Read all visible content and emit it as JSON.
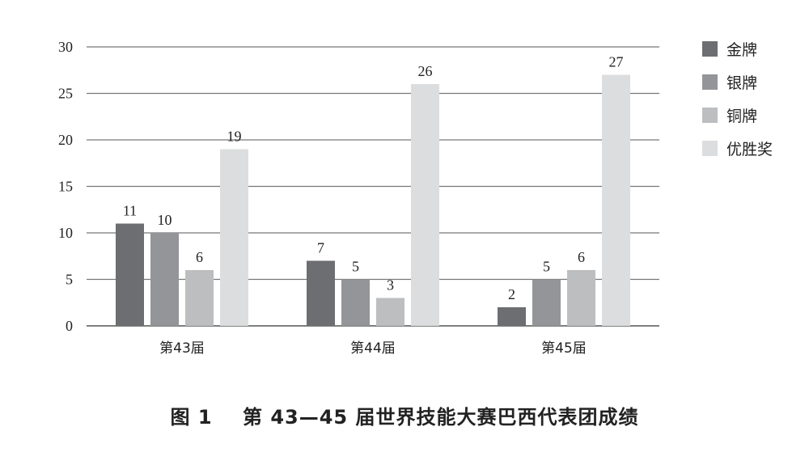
{
  "caption": "图 1    第 43—45 届世界技能大赛巴西代表团成绩",
  "chart_data": {
    "type": "bar",
    "title": "",
    "xlabel": "",
    "ylabel": "",
    "categories": [
      "第43届",
      "第44届",
      "第45届"
    ],
    "series": [
      {
        "name": "金牌",
        "color": "#6d6e71",
        "values": [
          11,
          7,
          2
        ]
      },
      {
        "name": "银牌",
        "color": "#939598",
        "values": [
          10,
          5,
          5
        ]
      },
      {
        "name": "铜牌",
        "color": "#bcbec0",
        "values": [
          6,
          3,
          6
        ]
      },
      {
        "name": "优胜奖",
        "color": "#dcddde",
        "values": [
          19,
          26,
          27
        ]
      }
    ],
    "ylim": [
      0,
      30
    ],
    "yticks": [
      0,
      5,
      10,
      15,
      20,
      25,
      30
    ],
    "grid": true,
    "legend_position": "right"
  }
}
